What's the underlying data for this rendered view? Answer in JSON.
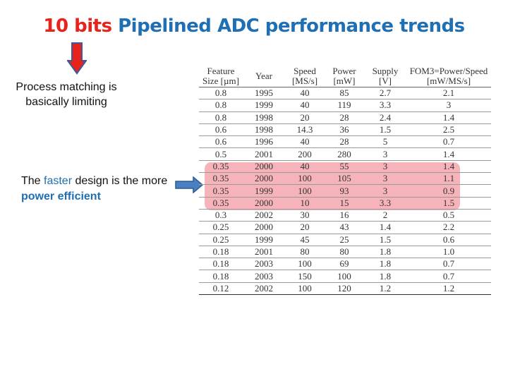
{
  "title": {
    "part1": "10 bits",
    "part2": "Pipelined ADC performance trends"
  },
  "note1": "Process matching is basically limiting",
  "note2": {
    "prefix": "The ",
    "faster": "faster",
    "mid": " design is the more ",
    "efficient": "power efficient"
  },
  "colors": {
    "red": "#e8231b",
    "blue": "#1e6fb3",
    "highlight": "#f4a6ae"
  },
  "icons": {
    "down_arrow": "down-arrow-icon",
    "right_arrow": "right-arrow-icon"
  },
  "table": {
    "headers": [
      {
        "l1": "Feature",
        "l2": "Size [µm]"
      },
      {
        "l1": "Year",
        "l2": ""
      },
      {
        "l1": "Speed",
        "l2": "[MS/s]"
      },
      {
        "l1": "Power",
        "l2": "[mW]"
      },
      {
        "l1": "Supply",
        "l2": "[V]"
      },
      {
        "l1": "FOM3=Power/Speed",
        "l2": "[mW/MS/s]"
      }
    ],
    "rows": [
      [
        "0.8",
        "1995",
        "40",
        "85",
        "2.7",
        "2.1"
      ],
      [
        "0.8",
        "1999",
        "40",
        "119",
        "3.3",
        "3"
      ],
      [
        "0.8",
        "1998",
        "20",
        "28",
        "2.4",
        "1.4"
      ],
      [
        "0.6",
        "1998",
        "14.3",
        "36",
        "1.5",
        "2.5"
      ],
      [
        "0.6",
        "1996",
        "40",
        "28",
        "5",
        "0.7"
      ],
      [
        "0.5",
        "2001",
        "200",
        "280",
        "3",
        "1.4"
      ],
      [
        "0.35",
        "2000",
        "40",
        "55",
        "3",
        "1.4"
      ],
      [
        "0.35",
        "2000",
        "100",
        "105",
        "3",
        "1.1"
      ],
      [
        "0.35",
        "1999",
        "100",
        "93",
        "3",
        "0.9"
      ],
      [
        "0.35",
        "2000",
        "10",
        "15",
        "3.3",
        "1.5"
      ],
      [
        "0.3",
        "2002",
        "30",
        "16",
        "2",
        "0.5"
      ],
      [
        "0.25",
        "2000",
        "20",
        "43",
        "1.4",
        "2.2"
      ],
      [
        "0.25",
        "1999",
        "45",
        "25",
        "1.5",
        "0.6"
      ],
      [
        "0.18",
        "2001",
        "80",
        "80",
        "1.8",
        "1.0"
      ],
      [
        "0.18",
        "2003",
        "100",
        "69",
        "1.8",
        "0.7"
      ],
      [
        "0.18",
        "2003",
        "150",
        "100",
        "1.8",
        "0.7"
      ],
      [
        "0.12",
        "2002",
        "100",
        "120",
        "1.2",
        "1.2"
      ]
    ]
  }
}
